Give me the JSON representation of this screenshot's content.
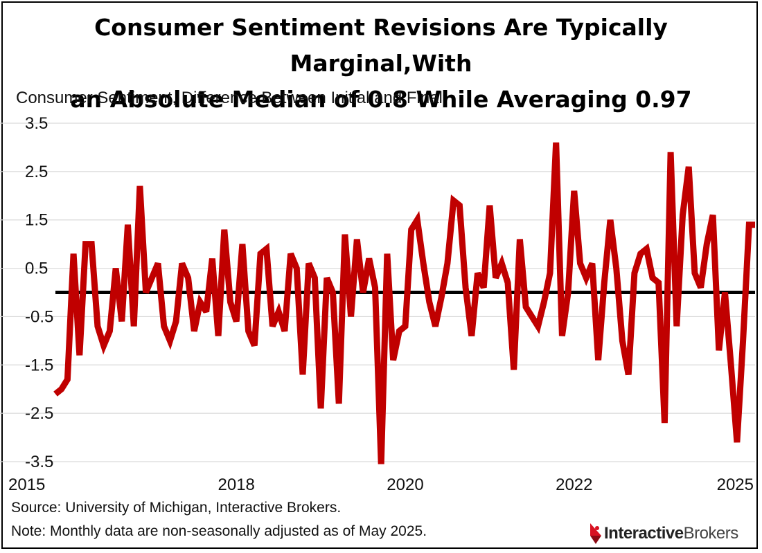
{
  "title_line1": "Consumer Sentiment Revisions Are Typically Marginal,With",
  "title_line2": "an Absolute Median of 0.8 While Averaging 0.97",
  "subtitle": "Consumer Sentiment, Difference Between Initial and Final",
  "source": "Source: University of Michigan, Interactive Brokers.",
  "note": "Note: Monthly data are non-seasonally adjusted as of May 2025.",
  "logo": {
    "bold": "Interactive",
    "light": "Brokers"
  },
  "colors": {
    "series": "#C00000",
    "zero_line": "#000000",
    "grid": "#D9D9D9"
  },
  "chart_data": {
    "type": "line",
    "title": "Consumer Sentiment Revisions Are Typically Marginal,With an Absolute Median of 0.8 While Averaging 0.97",
    "ylabel": "Consumer Sentiment, Difference Between Initial and Final",
    "xlabel": "",
    "ylim": [
      -3.5,
      3.5
    ],
    "yticks": [
      "3.5",
      "2.5",
      "1.5",
      "0.5",
      "-0.5",
      "-1.5",
      "-2.5",
      "-3.5"
    ],
    "ytick_values": [
      3.5,
      2.5,
      1.5,
      0.5,
      -0.5,
      -1.5,
      -2.5,
      -3.5
    ],
    "xticks": [
      "2015",
      "2018",
      "2020",
      "2022",
      "2025"
    ],
    "xtick_index": [
      0,
      30,
      58,
      86,
      113
    ],
    "x_start": "2015-01",
    "frequency": "monthly",
    "zero_line": 0,
    "series": [
      {
        "name": "Difference Between Initial and Final",
        "values": [
          -2.1,
          -2.0,
          -1.8,
          0.8,
          -1.3,
          1.0,
          1.0,
          -0.7,
          -1.1,
          -0.8,
          0.5,
          -0.6,
          1.4,
          -0.7,
          2.2,
          0.0,
          0.3,
          0.6,
          -0.7,
          -1.0,
          -0.6,
          0.6,
          0.3,
          -0.8,
          -0.2,
          -0.4,
          0.7,
          -0.9,
          1.3,
          -0.2,
          -0.6,
          1.0,
          -0.8,
          -1.1,
          0.8,
          0.9,
          -0.7,
          -0.4,
          -0.8,
          0.8,
          0.5,
          -1.7,
          0.6,
          0.3,
          -2.4,
          0.3,
          0.0,
          -2.3,
          1.2,
          -0.5,
          1.1,
          0.0,
          0.7,
          0.1,
          -3.6,
          0.8,
          -1.4,
          -0.8,
          -0.7,
          1.3,
          1.5,
          0.6,
          -0.2,
          -0.7,
          -0.1,
          0.6,
          1.9,
          1.8,
          0.1,
          -0.9,
          0.4,
          0.1,
          1.8,
          0.3,
          0.6,
          0.2,
          -1.6,
          1.1,
          -0.3,
          -0.5,
          -0.7,
          -0.2,
          0.4,
          3.1,
          -0.9,
          0.0,
          2.1,
          0.6,
          0.3,
          0.6,
          -1.4,
          0.2,
          1.5,
          0.5,
          -1.0,
          -1.7,
          0.4,
          0.8,
          0.9,
          0.3,
          0.2,
          -2.7,
          2.9,
          -0.7,
          1.6,
          2.6,
          0.4,
          0.1,
          1.0,
          1.6,
          -1.2,
          0.0,
          -1.5,
          -3.1,
          -1.0,
          1.4,
          1.4
        ]
      }
    ]
  }
}
